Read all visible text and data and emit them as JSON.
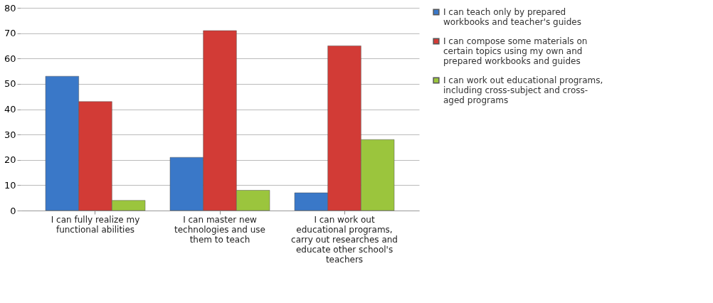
{
  "chart_data": {
    "type": "bar",
    "categories": [
      "I can fully realize my functional abilities",
      "I can master new technologies and use them to teach",
      "I can work out educational programs, carry out researches and educate other school's teachers"
    ],
    "series": [
      {
        "name": "I can teach only by prepared workbooks and teacher's guides",
        "color": "#3a78c8",
        "values": [
          53,
          21,
          7
        ]
      },
      {
        "name": "I can compose some materials on certain topics using my own and prepared workbooks and guides",
        "color": "#d23b36",
        "values": [
          43,
          71,
          65
        ]
      },
      {
        "name": "I can work out educational programs, including cross-subject and cross-aged programs",
        "color": "#9bc53d",
        "values": [
          4,
          8,
          28
        ]
      }
    ],
    "ylim": [
      0,
      80
    ],
    "yticks": [
      0,
      10,
      20,
      30,
      40,
      50,
      60,
      70,
      80
    ],
    "grid": "y",
    "legend": "right"
  }
}
